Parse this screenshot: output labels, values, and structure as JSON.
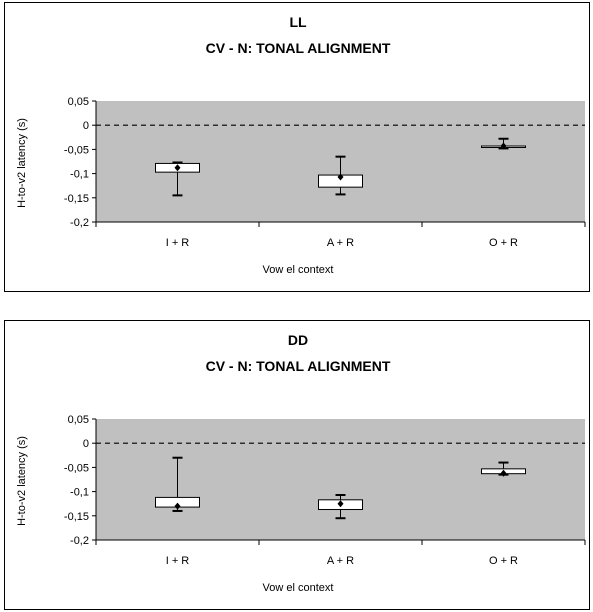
{
  "chart_data": [
    {
      "type": "box",
      "title": "LL",
      "subtitle": "CV - N: TONAL ALIGNMENT",
      "xlabel": "Vow el context",
      "ylabel": "H-to-v2 latency (s)",
      "ylim": [
        -0.2,
        0.05
      ],
      "yticks": [
        0.05,
        0,
        -0.05,
        -0.1,
        -0.15,
        -0.2
      ],
      "ytick_labels": [
        "0,05",
        "0",
        "-0,05",
        "-0,1",
        "-0,15",
        "-0,2"
      ],
      "reference_line": 0,
      "plot_background": "#c0c0c0",
      "categories": [
        "I + R",
        "A + R",
        "O + R"
      ],
      "boxes": [
        {
          "min": -0.145,
          "q1": -0.097,
          "median": -0.088,
          "q3": -0.079,
          "max": -0.077
        },
        {
          "min": -0.143,
          "q1": -0.128,
          "median": -0.107,
          "q3": -0.103,
          "max": -0.065
        },
        {
          "min": -0.048,
          "q1": -0.043,
          "median": -0.043,
          "q3": -0.043,
          "max": -0.028
        }
      ]
    },
    {
      "type": "box",
      "title": "DD",
      "subtitle": "CV - N: TONAL ALIGNMENT",
      "xlabel": "Vow el context",
      "ylabel": "H-to-v2 latency (s)",
      "ylim": [
        -0.2,
        0.05
      ],
      "yticks": [
        0.05,
        0,
        -0.05,
        -0.1,
        -0.15,
        -0.2
      ],
      "ytick_labels": [
        "0,05",
        "0",
        "-0,05",
        "-0,1",
        "-0,15",
        "-0,2"
      ],
      "reference_line": 0,
      "plot_background": "#c0c0c0",
      "categories": [
        "I + R",
        "A + R",
        "O + R"
      ],
      "boxes": [
        {
          "min": -0.14,
          "q1": -0.132,
          "median": -0.13,
          "q3": -0.112,
          "max": -0.03
        },
        {
          "min": -0.155,
          "q1": -0.137,
          "median": -0.125,
          "q3": -0.117,
          "max": -0.107
        },
        {
          "min": -0.065,
          "q1": -0.063,
          "median": -0.062,
          "q3": -0.053,
          "max": -0.04
        }
      ]
    }
  ]
}
